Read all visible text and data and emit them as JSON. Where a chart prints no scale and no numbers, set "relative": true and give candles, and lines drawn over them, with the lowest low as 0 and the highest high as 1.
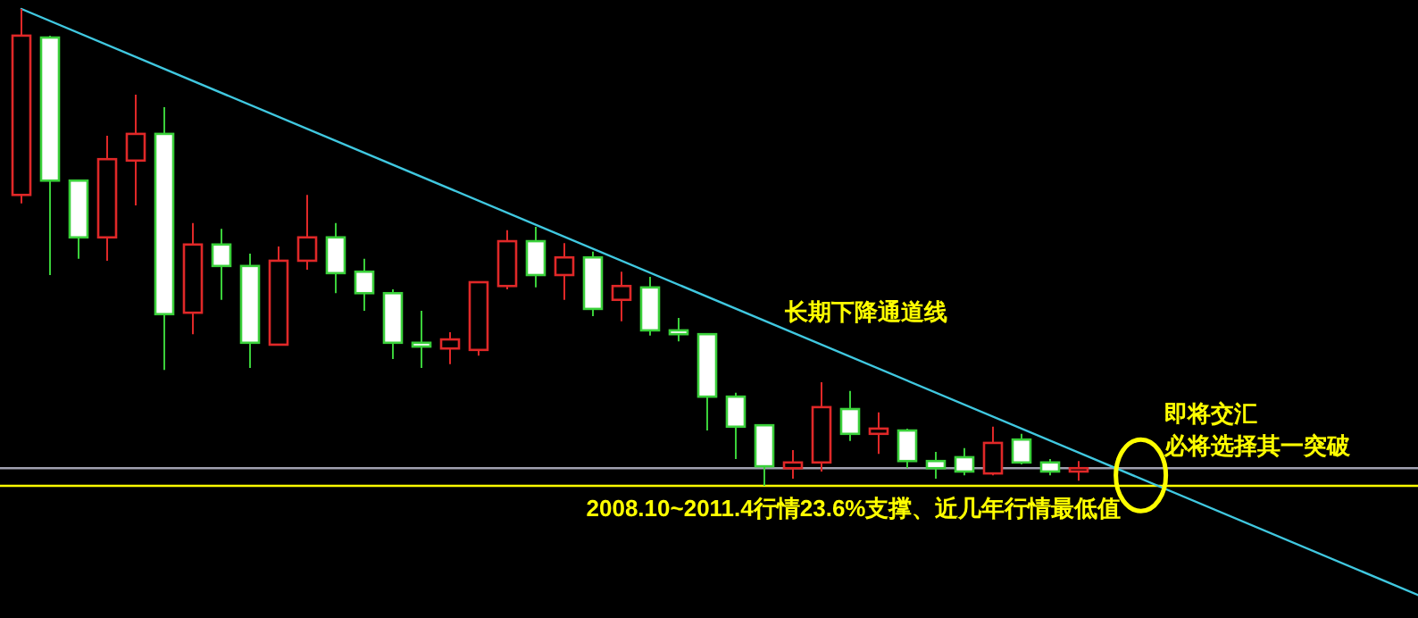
{
  "chart_data": {
    "type": "candlestick",
    "relative": true,
    "categories": [
      null,
      null,
      null,
      null,
      null,
      null,
      null,
      null,
      null,
      null,
      null,
      null,
      null,
      null,
      null,
      null,
      null,
      null,
      null,
      null,
      null,
      null,
      null,
      null,
      null,
      null,
      null,
      null,
      null,
      null,
      null,
      null,
      null,
      null,
      null,
      null,
      null,
      null,
      null,
      null,
      null,
      null,
      null,
      null,
      null,
      null,
      null,
      null,
      null,
      null
    ],
    "ohlc": [
      [
        0.61,
        1,
        0.592,
        0.944
      ],
      [
        0.94,
        0.944,
        0.442,
        0.64
      ],
      [
        0.64,
        0.64,
        0.476,
        0.521
      ],
      [
        0.521,
        0.734,
        0.472,
        0.685
      ],
      [
        0.682,
        0.82,
        0.588,
        0.738
      ],
      [
        0.738,
        0.794,
        0.243,
        0.36
      ],
      [
        0.363,
        0.551,
        0.318,
        0.506
      ],
      [
        0.506,
        0.539,
        0.39,
        0.461
      ],
      [
        0.461,
        0.487,
        0.247,
        0.3
      ],
      [
        0.296,
        0.502,
        0.296,
        0.472
      ],
      [
        0.472,
        0.61,
        0.453,
        0.521
      ],
      [
        0.521,
        0.551,
        0.404,
        0.446
      ],
      [
        0.449,
        0.476,
        0.367,
        0.404
      ],
      [
        0.404,
        0.412,
        0.266,
        0.3
      ],
      [
        0.3,
        0.367,
        0.247,
        0.292
      ],
      [
        0.288,
        0.322,
        0.255,
        0.307
      ],
      [
        0.285,
        0.427,
        0.273,
        0.427
      ],
      [
        0.419,
        0.536,
        0.412,
        0.513
      ],
      [
        0.513,
        0.543,
        0.416,
        0.442
      ],
      [
        0.442,
        0.509,
        0.39,
        0.479
      ],
      [
        0.479,
        0.491,
        0.356,
        0.371
      ],
      [
        0.39,
        0.449,
        0.345,
        0.419
      ],
      [
        0.416,
        0.438,
        0.315,
        0.326
      ],
      [
        0.326,
        0.352,
        0.303,
        0.318
      ],
      [
        0.318,
        0.318,
        0.116,
        0.187
      ],
      [
        0.187,
        0.195,
        0.056,
        0.124
      ],
      [
        0.127,
        0.127,
        0,
        0.041
      ],
      [
        0.037,
        0.075,
        0.015,
        0.049
      ],
      [
        0.049,
        0.217,
        0.03,
        0.165
      ],
      [
        0.161,
        0.199,
        0.094,
        0.109
      ],
      [
        0.109,
        0.154,
        0.067,
        0.12
      ],
      [
        0.116,
        0.12,
        0.037,
        0.052
      ],
      [
        0.052,
        0.071,
        0.015,
        0.037
      ],
      [
        0.06,
        0.079,
        0.022,
        0.03
      ],
      [
        0.026,
        0.124,
        0.022,
        0.09
      ],
      [
        0.097,
        0.109,
        0.045,
        0.049
      ],
      [
        0.049,
        0.056,
        0.022,
        0.03
      ],
      [
        0.03,
        0.052,
        0.011,
        0.037
      ],
      null,
      null,
      null,
      null,
      null,
      null,
      null,
      null,
      null,
      null,
      null,
      null
    ],
    "series": [
      {
        "type": "line",
        "color": "#40c8e0",
        "values": [
          1,
          null,
          null,
          null,
          null,
          null,
          null,
          null,
          null,
          null,
          null,
          null,
          null,
          null,
          null,
          null,
          null,
          null,
          null,
          null,
          null,
          null,
          null,
          null,
          null,
          null,
          null,
          null,
          null,
          null,
          null,
          null,
          null,
          null,
          null,
          null,
          null,
          null,
          null,
          null,
          null,
          null,
          null,
          null,
          null,
          null,
          null,
          null,
          null,
          -0.232
        ]
      }
    ],
    "ref_lines": [
      {
        "axis": "y",
        "value": 0.037,
        "color": "#a0a0b0"
      },
      {
        "axis": "y",
        "value": 0,
        "color": "#ffff00",
        "label": "2008.10~2011.4行情23.6%支撑、近几年行情最低值"
      }
    ],
    "annotations": [
      "长期下降通道线",
      "即将交汇",
      "必将选择其一突破"
    ]
  }
}
